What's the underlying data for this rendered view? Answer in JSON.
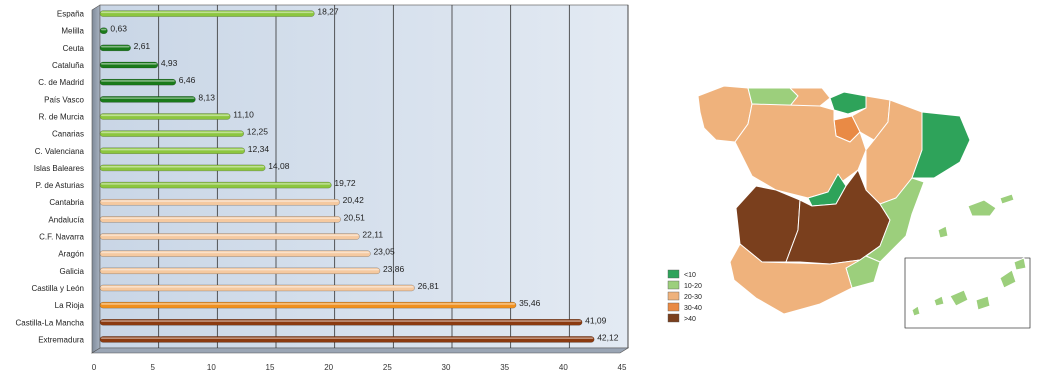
{
  "chart_data": [
    {
      "type": "bar",
      "orientation": "horizontal",
      "categories": [
        "España",
        "Melilla",
        "Ceuta",
        "Cataluña",
        "C. de Madrid",
        "País Vasco",
        "R. de Murcia",
        "Canarias",
        "C. Valenciana",
        "Islas Baleares",
        "P. de Asturias",
        "Cantabria",
        "Andalucía",
        "C.F. Navarra",
        "Aragón",
        "Galicia",
        "Castilla y León",
        "La Rioja",
        "Castilla-La Mancha",
        "Extremadura"
      ],
      "values": [
        18.27,
        0.63,
        2.61,
        4.93,
        6.46,
        8.13,
        11.1,
        12.25,
        12.34,
        14.08,
        19.72,
        20.42,
        20.51,
        22.11,
        23.05,
        23.86,
        26.81,
        35.46,
        41.09,
        42.12
      ],
      "value_labels": [
        "18,27",
        "0,63",
        "2,61",
        "4,93",
        "6,46",
        "8,13",
        "11,10",
        "12,25",
        "12,34",
        "14,08",
        "19,72",
        "20,42",
        "20,51",
        "22,11",
        "23,05",
        "23,86",
        "26,81",
        "35,46",
        "41,09",
        "42,12"
      ],
      "colors": [
        "#8cc63f",
        "#1a7a1a",
        "#1a7a1a",
        "#1a7a1a",
        "#1a7a1a",
        "#1a7a1a",
        "#8cc63f",
        "#8cc63f",
        "#8cc63f",
        "#8cc63f",
        "#8cc63f",
        "#f5c9a0",
        "#f5c9a0",
        "#f5c9a0",
        "#f5c9a0",
        "#f5c9a0",
        "#f5c9a0",
        "#f0901e",
        "#8b3a10",
        "#8b3a10"
      ],
      "xlim": [
        0,
        45
      ],
      "xticks": [
        "0",
        "5",
        "10",
        "15",
        "20",
        "25",
        "30",
        "35",
        "40",
        "45"
      ],
      "grid": true,
      "background": "#d9e4f0"
    },
    {
      "type": "choropleth-map",
      "legend": [
        {
          "label": "<10",
          "color": "#2ea35a"
        },
        {
          "label": "10-20",
          "color": "#9ccf7c"
        },
        {
          "label": "20-30",
          "color": "#efb27c"
        },
        {
          "label": "30-40",
          "color": "#e98a45"
        },
        {
          "label": ">40",
          "color": "#7a3f1d"
        }
      ],
      "legend_placement": "bottom-left"
    }
  ]
}
